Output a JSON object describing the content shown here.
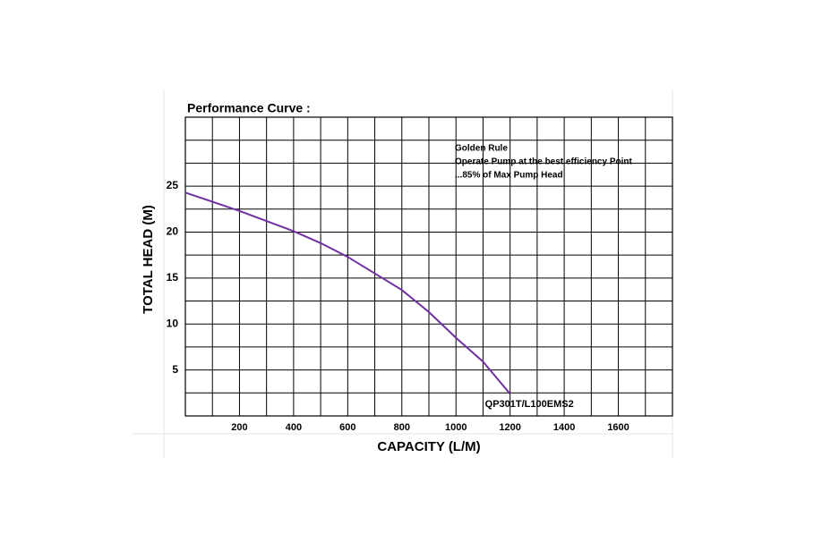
{
  "chart_data": {
    "type": "line",
    "title": "Performance Curve :",
    "x_label": "CAPACITY (L/M)",
    "y_label": "TOTAL HEAD (M)",
    "annotation": [
      "Golden Rule",
      "Operate Pump at the best efficiency Point",
      "...85% of Max Pump Head"
    ],
    "x": [
      0,
      200,
      400,
      500,
      600,
      700,
      800,
      900,
      1000,
      1100,
      1200
    ],
    "series": [
      {
        "name": "QP301T/L100EMS2",
        "color": "#7030a0",
        "values": [
          24.3,
          22.3,
          20.1,
          18.8,
          17.3,
          15.5,
          13.7,
          11.3,
          8.5,
          5.9,
          2.4
        ]
      }
    ],
    "xlim": [
      0,
      1800
    ],
    "ylim": [
      0,
      32.5
    ],
    "xticks": [
      200,
      400,
      600,
      800,
      1000,
      1200,
      1400,
      1600
    ],
    "yticks": [
      5,
      10,
      15,
      20,
      25
    ],
    "xgrid": [
      100,
      200,
      300,
      400,
      500,
      600,
      700,
      800,
      900,
      1000,
      1100,
      1200,
      1300,
      1400,
      1500,
      1600,
      1700
    ],
    "ygrid": [
      2.5,
      5,
      7.5,
      10,
      12.5,
      15,
      17.5,
      20,
      22.5,
      25,
      27.5,
      30
    ],
    "grid": true
  }
}
